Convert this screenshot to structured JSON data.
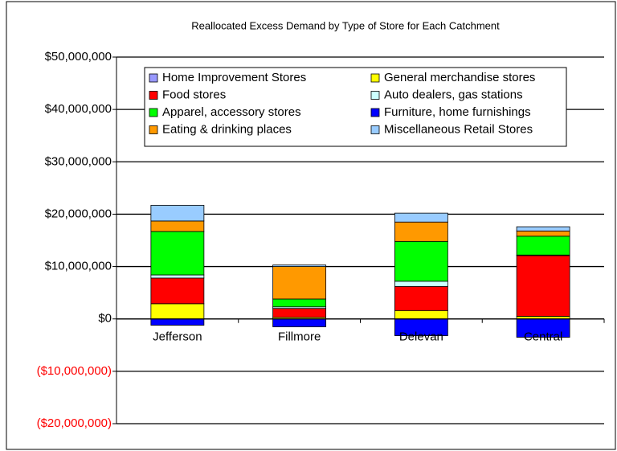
{
  "chart_data": {
    "type": "stacked_bar",
    "title": "Reallocated Excess Demand by Type of Store for Each Catchment",
    "categories": [
      "Jefferson",
      "Fillmore",
      "Delevan",
      "Central"
    ],
    "series": [
      {
        "name": "Home Improvement Stores",
        "color": "#9999ff",
        "values": [
          0,
          0,
          0,
          0
        ]
      },
      {
        "name": "General merchandise stores",
        "color": "#ffff00",
        "values": [
          2900000,
          300000,
          1600000,
          500000
        ]
      },
      {
        "name": "Food stores",
        "color": "#ff0000",
        "values": [
          4900000,
          1700000,
          4600000,
          11600000
        ]
      },
      {
        "name": "Auto dealers, gas stations",
        "color": "#ccffff",
        "values": [
          600000,
          300000,
          1000000,
          100000
        ]
      },
      {
        "name": "Apparel, accessory stores",
        "color": "#00ff00",
        "values": [
          8300000,
          1500000,
          7600000,
          3600000
        ]
      },
      {
        "name": "Furniture, home furnishings",
        "color": "#0000ff",
        "values": [
          -1200000,
          -1500000,
          -3200000,
          -3500000
        ]
      },
      {
        "name": "Eating & drinking places",
        "color": "#ff9900",
        "values": [
          2000000,
          6200000,
          3700000,
          1000000
        ]
      },
      {
        "name": "Miscellaneous Retail Stores",
        "color": "#99ccff",
        "values": [
          3000000,
          300000,
          1700000,
          800000
        ]
      }
    ],
    "ylim": [
      -20000000,
      50000000
    ],
    "yticks": [
      {
        "value": -20000000,
        "label": "($20,000,000)"
      },
      {
        "value": -10000000,
        "label": "($10,000,000)"
      },
      {
        "value": 0,
        "label": "$0"
      },
      {
        "value": 10000000,
        "label": "$10,000,000"
      },
      {
        "value": 20000000,
        "label": "$20,000,000"
      },
      {
        "value": 30000000,
        "label": "$30,000,000"
      },
      {
        "value": 40000000,
        "label": "$40,000,000"
      },
      {
        "value": 50000000,
        "label": "$50,000,000"
      }
    ],
    "grid": true,
    "legend": "top"
  }
}
